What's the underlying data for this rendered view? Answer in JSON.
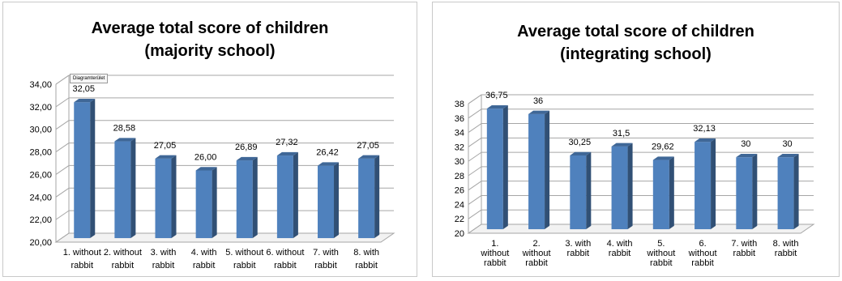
{
  "tooltip_text": "Diagramterület",
  "chart_data": [
    {
      "type": "bar",
      "title_lines": [
        "Average total score of children",
        "(majority school)"
      ],
      "categories": [
        [
          "1. without",
          "rabbit"
        ],
        [
          "2. without",
          "rabbit"
        ],
        [
          "3. with",
          "rabbit"
        ],
        [
          "4. with",
          "rabbit"
        ],
        [
          "5. without",
          "rabbit"
        ],
        [
          "6. without",
          "rabbit"
        ],
        [
          "7. with",
          "rabbit"
        ],
        [
          "8. with",
          "rabbit"
        ]
      ],
      "values": [
        32.05,
        28.58,
        27.05,
        26.0,
        26.89,
        27.32,
        26.42,
        27.05
      ],
      "data_labels": [
        "32,05",
        "28,58",
        "27,05",
        "26,00",
        "26,89",
        "27,32",
        "26,42",
        "27,05"
      ],
      "ylim": [
        20,
        34
      ],
      "yticks": [
        20,
        22,
        24,
        26,
        28,
        30,
        32,
        34
      ],
      "ytick_labels": [
        "20,00",
        "22,00",
        "24,00",
        "26,00",
        "28,00",
        "30,00",
        "32,00",
        "34,00"
      ],
      "grid": true,
      "bar_color": "#4f81bd"
    },
    {
      "type": "bar",
      "title_lines": [
        "Average total score of children",
        "(integrating school)"
      ],
      "categories": [
        [
          "1.",
          "without",
          "rabbit"
        ],
        [
          "2.",
          "without",
          "rabbit"
        ],
        [
          "3. with",
          "rabbit"
        ],
        [
          "4. with",
          "rabbit"
        ],
        [
          "5.",
          "without",
          "rabbit"
        ],
        [
          "6.",
          "without",
          "rabbit"
        ],
        [
          "7. with",
          "rabbit"
        ],
        [
          "8. with",
          "rabbit"
        ]
      ],
      "values": [
        36.75,
        36,
        30.25,
        31.5,
        29.62,
        32.13,
        30,
        30
      ],
      "data_labels": [
        "36,75",
        "36",
        "30,25",
        "31,5",
        "29,62",
        "32,13",
        "30",
        "30"
      ],
      "ylim": [
        20,
        38
      ],
      "yticks": [
        20,
        22,
        24,
        26,
        28,
        30,
        32,
        34,
        36,
        38
      ],
      "ytick_labels": [
        "20",
        "22",
        "24",
        "26",
        "28",
        "30",
        "32",
        "34",
        "36",
        "38"
      ],
      "grid": true,
      "bar_color": "#4f81bd"
    }
  ]
}
